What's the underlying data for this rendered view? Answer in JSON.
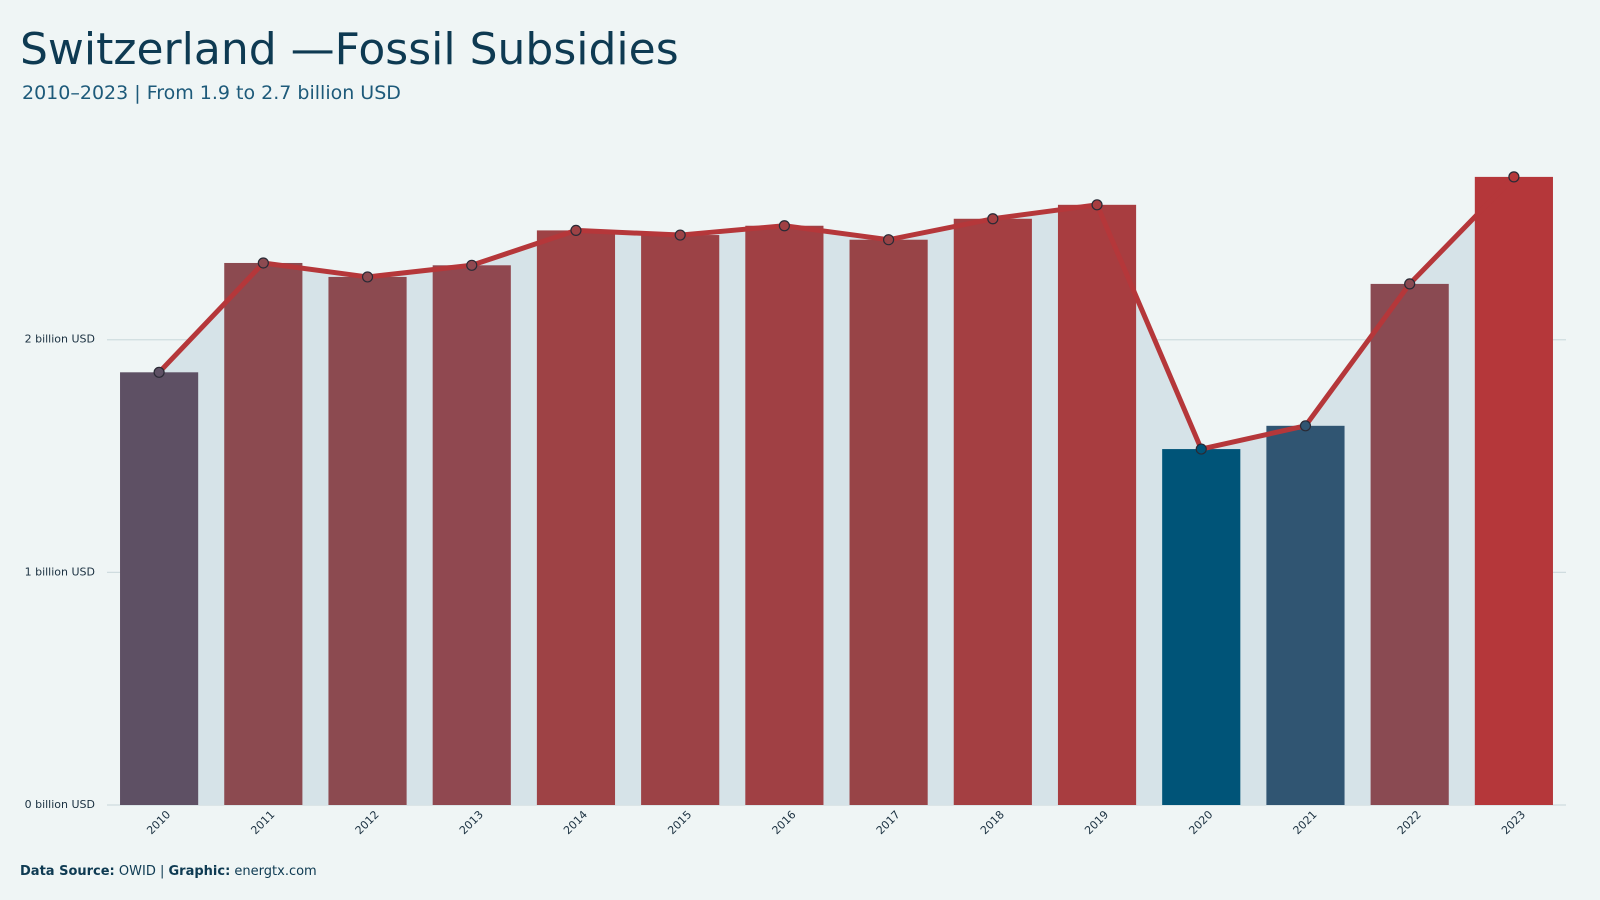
{
  "chart_data": {
    "type": "bar",
    "title": "Switzerland —Fossil Subsidies",
    "subtitle": "2010–2023 | From 1.9 to 2.7 billion USD",
    "footer": {
      "source_label": "Data Source:",
      "source": "OWID |",
      "graphic_label": "Graphic:",
      "graphic": "energtx.com"
    },
    "categories": [
      "2010",
      "2011",
      "2012",
      "2013",
      "2014",
      "2015",
      "2016",
      "2017",
      "2018",
      "2019",
      "2020",
      "2021",
      "2022",
      "2023"
    ],
    "values": [
      1.86,
      2.33,
      2.27,
      2.32,
      2.47,
      2.45,
      2.49,
      2.43,
      2.52,
      2.58,
      1.53,
      1.63,
      2.24,
      2.7
    ],
    "colors": [
      "#5e5064",
      "#8c4a50",
      "#8c4a50",
      "#904850",
      "#9e4245",
      "#9c4246",
      "#a04044",
      "#984447",
      "#a43f42",
      "#a83d40",
      "#005478",
      "#305572",
      "#8a4a52",
      "#b5373a"
    ],
    "line_color": "#b5373a",
    "area_color": "#d6e3e8",
    "ylim": [
      0,
      2.85
    ],
    "yticks": [
      {
        "value": 0,
        "label": "0 billion USD"
      },
      {
        "value": 1,
        "label": "1 billion USD"
      },
      {
        "value": 2,
        "label": "2 billion USD"
      }
    ],
    "grid": true
  }
}
